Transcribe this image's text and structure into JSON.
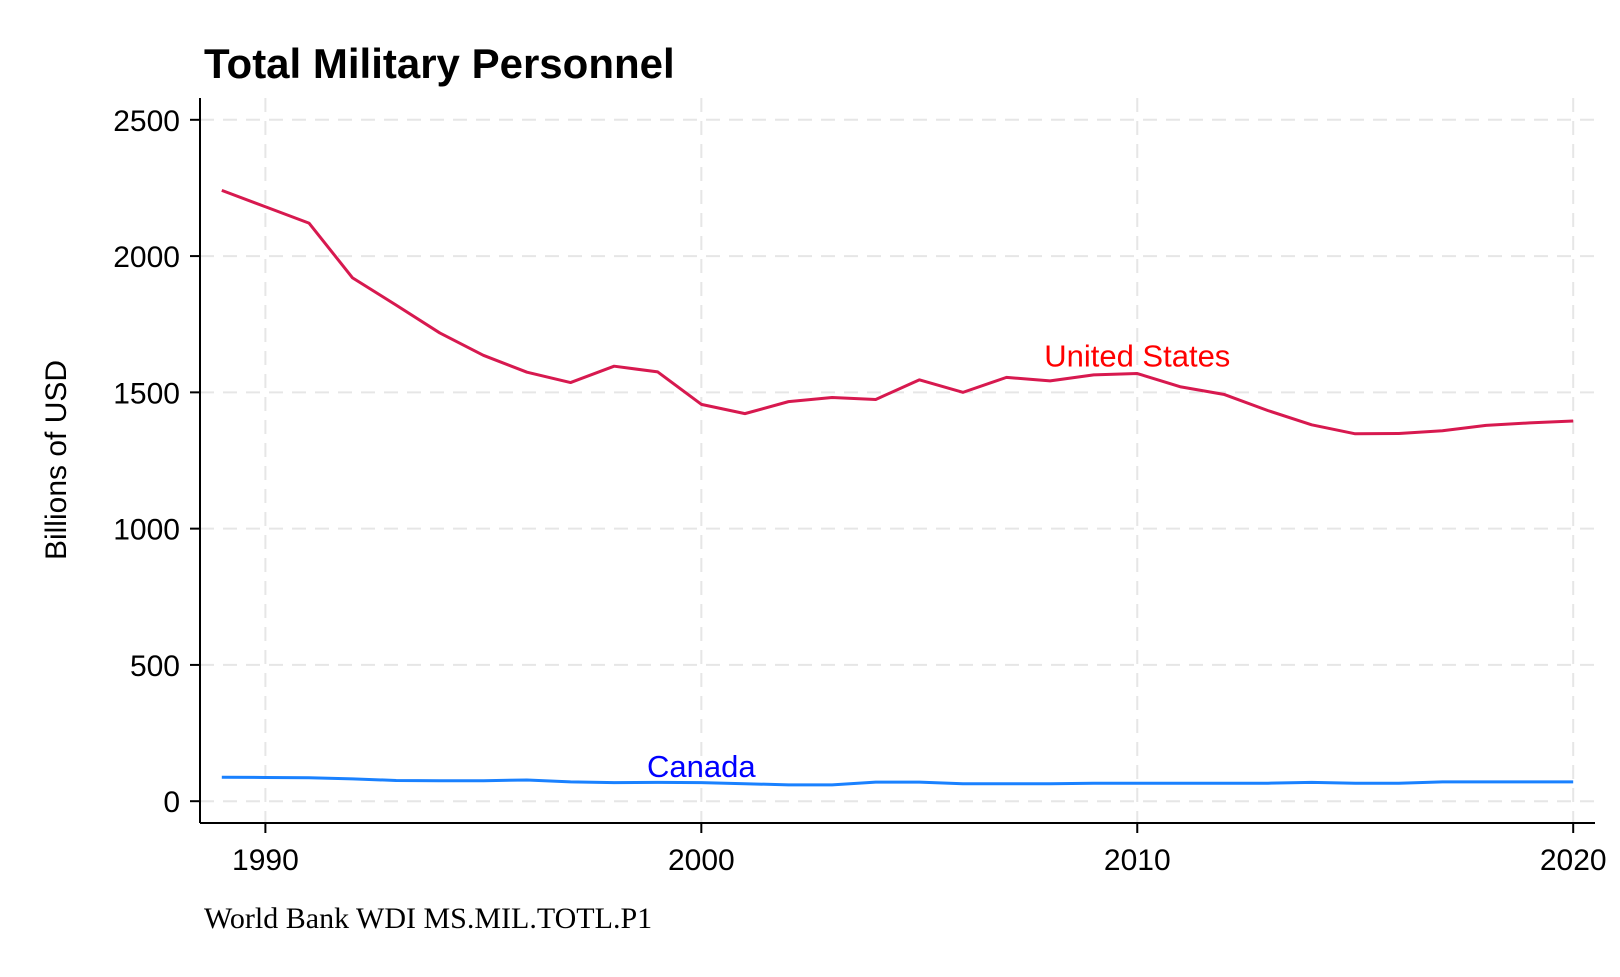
{
  "chart_data": {
    "type": "line",
    "title": "Total Military Personnel",
    "xlabel": "",
    "ylabel": "Billions of USD",
    "source_note": "World Bank WDI MS.MIL.TOTL.P1",
    "xlim": [
      1988.5,
      2020.5
    ],
    "ylim": [
      -80,
      2580
    ],
    "x_ticks": [
      1990,
      2000,
      2010,
      2020
    ],
    "y_ticks": [
      0,
      500,
      1000,
      1500,
      2000,
      2500
    ],
    "grid": true,
    "legend": "none (inline labels)",
    "x": [
      1989,
      1990,
      1991,
      1992,
      1993,
      1994,
      1995,
      1996,
      1997,
      1998,
      1999,
      2000,
      2001,
      2002,
      2003,
      2004,
      2005,
      2006,
      2007,
      2008,
      2009,
      2010,
      2011,
      2012,
      2013,
      2014,
      2015,
      2016,
      2017,
      2018,
      2019,
      2020
    ],
    "series": [
      {
        "name": "United States",
        "color": "#d7194f",
        "label_color": "#ff0000",
        "label_at": [
          2010,
          1595
        ],
        "values": [
          2241,
          2181,
          2121,
          1920,
          1820,
          1718,
          1636,
          1574,
          1536,
          1596,
          1575,
          1456,
          1422,
          1466,
          1481,
          1474,
          1546,
          1500,
          1555,
          1542,
          1564,
          1569,
          1520,
          1492,
          1433,
          1381,
          1348,
          1349,
          1359,
          1379,
          1388,
          1395
        ]
      },
      {
        "name": "Canada",
        "color": "#1a81ff",
        "label_color": "#0000ff",
        "label_at": [
          2000,
          88
        ],
        "values": [
          88,
          87,
          86,
          82,
          76,
          75,
          75,
          78,
          71,
          68,
          69,
          68,
          64,
          60,
          60,
          70,
          70,
          64,
          64,
          64,
          66,
          66,
          66,
          66,
          66,
          69,
          66,
          66,
          71,
          71,
          71,
          71
        ]
      }
    ]
  }
}
